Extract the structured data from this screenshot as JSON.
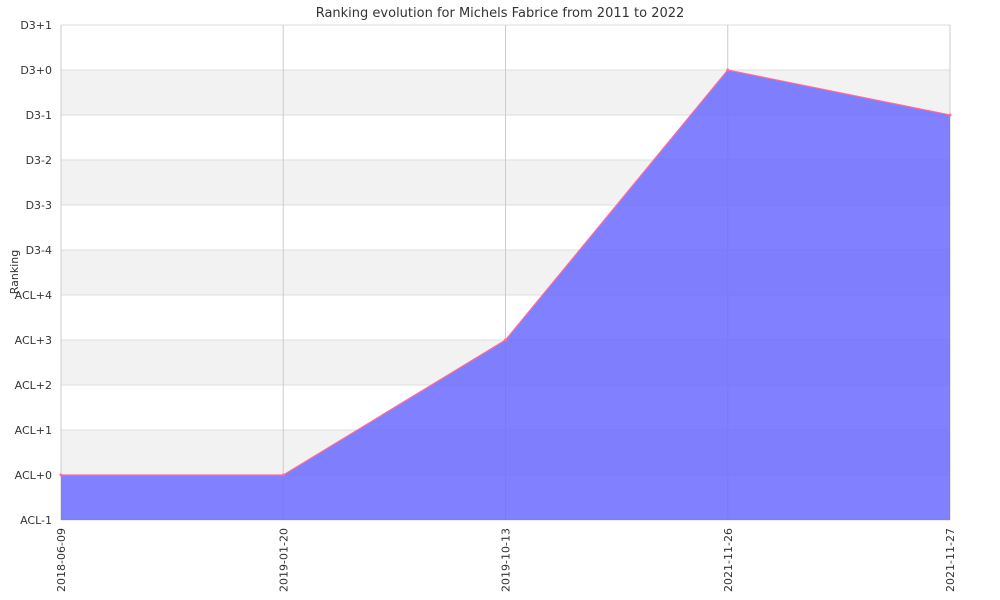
{
  "chart_data": {
    "type": "area",
    "title": "Ranking evolution for Michels Fabrice from 2011 to 2022",
    "xlabel": "",
    "ylabel": "Ranking",
    "categories": [
      "2018-06-09",
      "2019-01-20",
      "2019-10-13",
      "2021-11-26",
      "2021-11-27"
    ],
    "y_ticks": [
      "ACL-1",
      "ACL+0",
      "ACL+1",
      "ACL+2",
      "ACL+3",
      "ACL+4",
      "D3-4",
      "D3-3",
      "D3-2",
      "D3-1",
      "D3+0",
      "D3+1"
    ],
    "series": [
      {
        "values": [
          "ACL+0",
          "ACL+0",
          "ACL+3",
          "D3+0",
          "D3-1"
        ]
      }
    ],
    "grid": true,
    "colors": {
      "fill": "#6b6bff",
      "line": "#ff6b9a",
      "band": "#f2f2f2",
      "grid": "#dddddd"
    }
  }
}
